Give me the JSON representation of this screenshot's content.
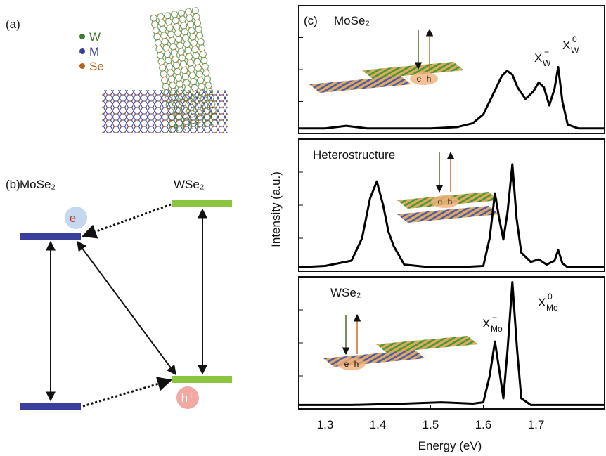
{
  "panel_a": {
    "label": "(a)",
    "legend": [
      {
        "name": "W",
        "color": "#3c7d2c"
      },
      {
        "name": "M",
        "color": "#3a3f9e"
      },
      {
        "name": "Se",
        "color": "#b8621b"
      }
    ]
  },
  "panel_b": {
    "label": "(b)",
    "left_material": "MoSe₂",
    "right_material": "WSe₂",
    "electron": "e⁻",
    "hole": "h⁺"
  },
  "chart_data": {
    "type": "line",
    "label": "(c)",
    "x_label": "Energy (eV)",
    "y_label": "Intensity (a.u.)",
    "xlim": [
      1.25,
      1.83
    ],
    "xticks": [
      1.3,
      1.4,
      1.5,
      1.6,
      1.7
    ],
    "ylim": [
      0,
      1
    ],
    "color": "#000000",
    "subplots": [
      {
        "title": "MoSe₂",
        "inset_electron": "e",
        "inset_hole": "h",
        "x": [
          1.25,
          1.3,
          1.34,
          1.38,
          1.45,
          1.5,
          1.55,
          1.58,
          1.6,
          1.62,
          1.635,
          1.645,
          1.655,
          1.665,
          1.68,
          1.695,
          1.705,
          1.715,
          1.725,
          1.735,
          1.742,
          1.75,
          1.76,
          1.78,
          1.83
        ],
        "values": [
          0.04,
          0.04,
          0.06,
          0.04,
          0.04,
          0.04,
          0.05,
          0.08,
          0.15,
          0.32,
          0.45,
          0.49,
          0.46,
          0.36,
          0.27,
          0.33,
          0.4,
          0.36,
          0.22,
          0.35,
          0.52,
          0.25,
          0.07,
          0.04,
          0.04
        ],
        "annotations": [
          {
            "text": "X",
            "sub": "W",
            "sup": "−"
          },
          {
            "text": "X",
            "sub": "W",
            "sup": "0"
          }
        ]
      },
      {
        "title": "Heterostructure",
        "inset_electron": "e",
        "inset_hole": "h",
        "x": [
          1.25,
          1.3,
          1.35,
          1.37,
          1.385,
          1.398,
          1.41,
          1.42,
          1.43,
          1.45,
          1.5,
          1.55,
          1.6,
          1.612,
          1.622,
          1.63,
          1.638,
          1.646,
          1.655,
          1.663,
          1.672,
          1.69,
          1.705,
          1.72,
          1.735,
          1.742,
          1.75,
          1.76,
          1.83
        ],
        "values": [
          0.03,
          0.04,
          0.08,
          0.25,
          0.55,
          0.68,
          0.5,
          0.3,
          0.19,
          0.05,
          0.03,
          0.03,
          0.04,
          0.25,
          0.59,
          0.4,
          0.24,
          0.45,
          0.81,
          0.4,
          0.14,
          0.07,
          0.09,
          0.05,
          0.08,
          0.16,
          0.06,
          0.03,
          0.03
        ],
        "annotations": []
      },
      {
        "title": "WSe₂",
        "inset_electron": "e",
        "inset_hole": "h",
        "x": [
          1.25,
          1.35,
          1.45,
          1.52,
          1.58,
          1.6,
          1.612,
          1.622,
          1.63,
          1.638,
          1.646,
          1.655,
          1.664,
          1.672,
          1.69,
          1.72,
          1.83
        ],
        "values": [
          0.03,
          0.03,
          0.04,
          0.05,
          0.04,
          0.05,
          0.25,
          0.51,
          0.3,
          0.08,
          0.45,
          0.96,
          0.45,
          0.08,
          0.03,
          0.03,
          0.03
        ],
        "annotations": [
          {
            "text": "X",
            "sub": "Mo",
            "sup": "−"
          },
          {
            "text": "X",
            "sub": "Mo",
            "sup": "0"
          }
        ]
      }
    ]
  }
}
